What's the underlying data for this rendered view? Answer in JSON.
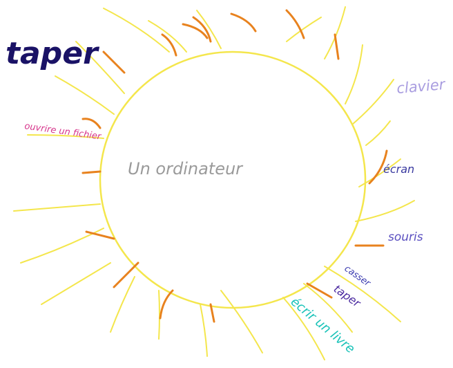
{
  "center": {
    "label": "Un ordinateur"
  },
  "words": [
    {
      "label": "taper"
    },
    {
      "label": "ouvrire un fichier"
    },
    {
      "label": "clavier"
    },
    {
      "label": "écran"
    },
    {
      "label": "souris"
    },
    {
      "label": "casser"
    },
    {
      "label": "taper"
    },
    {
      "label": "écrir un livre"
    }
  ]
}
